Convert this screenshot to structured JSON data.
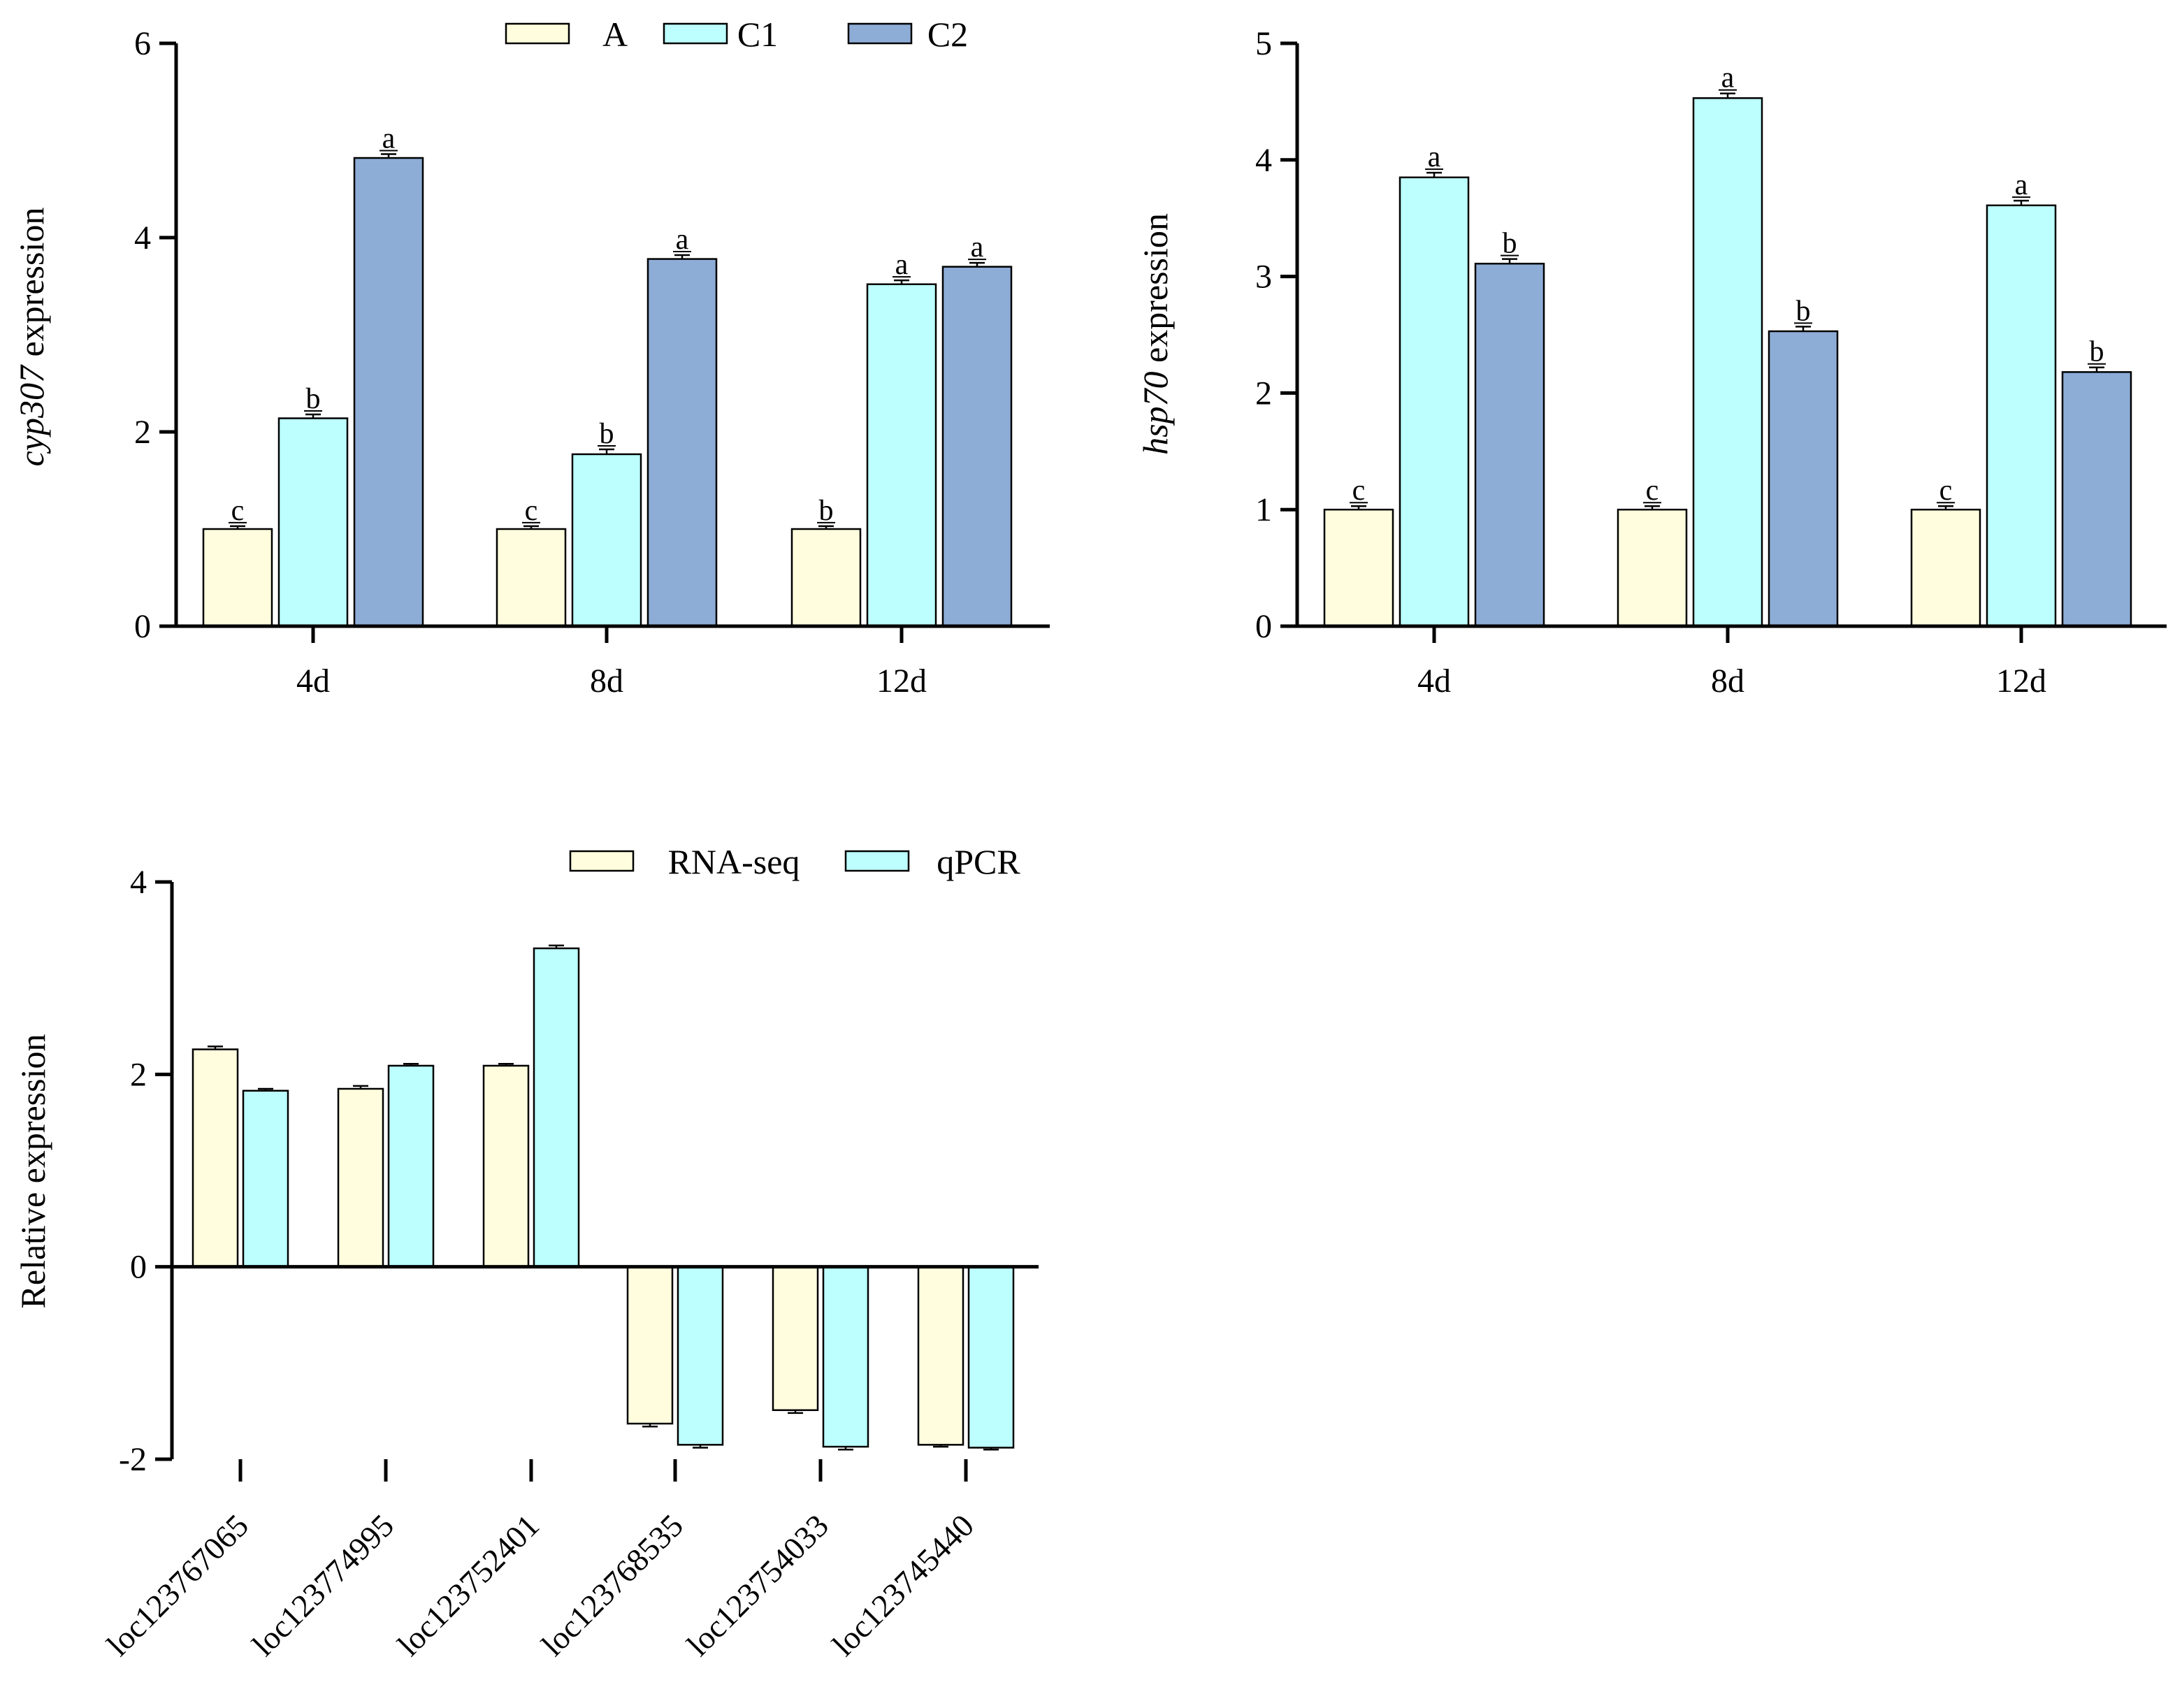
{
  "chart_data": [
    {
      "type": "bar",
      "ylabel_italic": "cyp307",
      "ylabel_rest": " expression",
      "categories": [
        "4d",
        "8d",
        "12d"
      ],
      "ylim": [
        0,
        6
      ],
      "yticks": [
        0,
        2,
        4,
        6
      ],
      "legend": {
        "position": "top-right",
        "entries": [
          "A",
          "C1",
          "C2"
        ]
      },
      "series": [
        {
          "name": "A",
          "color": "#FFFDDE",
          "values": [
            1.0,
            1.0,
            1.0
          ],
          "errors": [
            0.03,
            0.03,
            0.03
          ],
          "labels": [
            "c",
            "c",
            "b"
          ]
        },
        {
          "name": "C1",
          "color": "#BDFFFF",
          "values": [
            2.14,
            1.77,
            3.52
          ],
          "errors": [
            0.04,
            0.05,
            0.04
          ],
          "labels": [
            "b",
            "b",
            "a"
          ]
        },
        {
          "name": "C2",
          "color": "#8DACD6",
          "values": [
            4.82,
            3.78,
            3.7
          ],
          "errors": [
            0.04,
            0.04,
            0.04
          ],
          "labels": [
            "a",
            "a",
            "a"
          ]
        }
      ]
    },
    {
      "type": "bar",
      "ylabel_italic": "hsp70",
      "ylabel_rest": "  expression",
      "categories": [
        "4d",
        "8d",
        "12d"
      ],
      "ylim": [
        0,
        5
      ],
      "yticks": [
        0,
        1,
        2,
        3,
        4,
        5
      ],
      "series": [
        {
          "name": "A",
          "color": "#FFFDDE",
          "values": [
            1.0,
            1.0,
            1.0
          ],
          "errors": [
            0.03,
            0.03,
            0.03
          ],
          "labels": [
            "c",
            "c",
            "c"
          ]
        },
        {
          "name": "C1",
          "color": "#BDFFFF",
          "values": [
            3.85,
            4.53,
            3.61
          ],
          "errors": [
            0.04,
            0.04,
            0.04
          ],
          "labels": [
            "a",
            "a",
            "a"
          ]
        },
        {
          "name": "C2",
          "color": "#8DACD6",
          "values": [
            3.11,
            2.53,
            2.18
          ],
          "errors": [
            0.04,
            0.04,
            0.04
          ],
          "labels": [
            "b",
            "b",
            "b"
          ]
        }
      ]
    },
    {
      "type": "bar",
      "ylabel": "Relative expression",
      "categories": [
        "loc123767065",
        "loc123774995",
        "loc123752401",
        "loc123768535",
        "loc123754033",
        "loc123745440"
      ],
      "ylim": [
        -2,
        4
      ],
      "yticks": [
        -2,
        0,
        2,
        4
      ],
      "legend": {
        "position": "top-right",
        "entries": [
          "RNA-seq",
          "qPCR"
        ]
      },
      "series": [
        {
          "name": "RNA-seq",
          "color": "#FFFDDE",
          "values": [
            2.26,
            1.85,
            2.09,
            -1.63,
            -1.49,
            -1.85
          ],
          "errors": [
            0.03,
            0.03,
            0.02,
            0.03,
            0.03,
            0.02
          ]
        },
        {
          "name": "qPCR",
          "color": "#BDFFFF",
          "values": [
            1.83,
            2.09,
            3.31,
            -1.85,
            -1.87,
            -1.88
          ],
          "errors": [
            0.02,
            0.02,
            0.03,
            0.03,
            0.03,
            0.02
          ]
        }
      ]
    }
  ]
}
